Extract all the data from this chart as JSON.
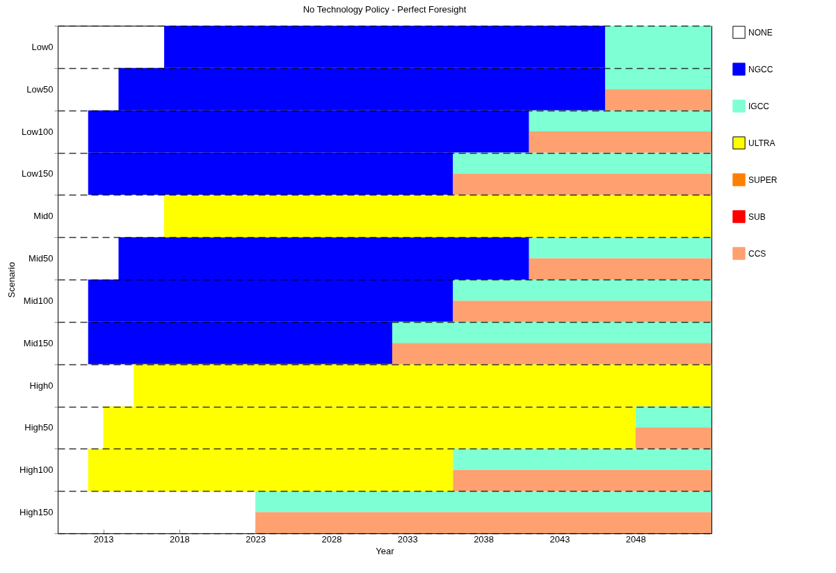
{
  "chart_data": {
    "type": "bar",
    "orientation": "horizontal",
    "title": "No Technology Policy - Perfect Foresight",
    "xlabel": "Year",
    "ylabel": "Scenario",
    "categories": [
      "Low0",
      "Low50",
      "Low100",
      "Low150",
      "Mid0",
      "Mid50",
      "Mid100",
      "Mid150",
      "High0",
      "High50",
      "High100",
      "High150"
    ],
    "xlim": [
      2010,
      2053
    ],
    "xticks": [
      2013,
      2018,
      2023,
      2028,
      2033,
      2038,
      2043,
      2048
    ],
    "grid": "y",
    "legend": "right",
    "series": [
      {
        "name": "NONE",
        "color": "#ffffff",
        "values": [
          null,
          null,
          null,
          null,
          null,
          null,
          null,
          null,
          null,
          null,
          null,
          null
        ]
      },
      {
        "name": "NGCC",
        "color": "#0000ff",
        "base": [
          2017,
          2014,
          2012,
          2012,
          null,
          2014,
          2012,
          2012,
          null,
          null,
          null,
          null
        ],
        "values": [
          29,
          32,
          29,
          24,
          null,
          27,
          24,
          20,
          null,
          null,
          null,
          null
        ]
      },
      {
        "name": "IGCC",
        "color": "#7fffd4",
        "base": [
          2046,
          2046,
          2041,
          2036,
          null,
          2041,
          2036,
          2032,
          null,
          2048,
          2036,
          2023
        ],
        "values": [
          7,
          7,
          12,
          17,
          null,
          12,
          17,
          21,
          null,
          5,
          17,
          30
        ]
      },
      {
        "name": "ULTRA",
        "color": "#ffff00",
        "base": [
          null,
          null,
          null,
          null,
          2017,
          null,
          null,
          null,
          2015,
          2013,
          2012,
          null
        ],
        "values": [
          null,
          null,
          null,
          null,
          36,
          null,
          null,
          null,
          38,
          35,
          24,
          null
        ]
      },
      {
        "name": "SUPER",
        "color": "#ff8000",
        "base": [
          null,
          null,
          null,
          null,
          null,
          null,
          null,
          null,
          null,
          null,
          null,
          null
        ],
        "values": [
          null,
          null,
          null,
          null,
          null,
          null,
          null,
          null,
          null,
          null,
          null,
          null
        ]
      },
      {
        "name": "SUB",
        "color": "#ff0000",
        "base": [
          null,
          null,
          null,
          null,
          null,
          null,
          null,
          null,
          null,
          null,
          null,
          null
        ],
        "values": [
          null,
          null,
          null,
          null,
          null,
          null,
          null,
          null,
          null,
          null,
          null,
          null
        ]
      },
      {
        "name": "CCS",
        "color": "#ffa070",
        "base": [
          null,
          2046,
          2041,
          2036,
          null,
          2041,
          2036,
          2032,
          null,
          2048,
          2036,
          2023
        ],
        "values": [
          null,
          7,
          12,
          17,
          null,
          12,
          17,
          21,
          null,
          5,
          17,
          30
        ]
      }
    ]
  }
}
